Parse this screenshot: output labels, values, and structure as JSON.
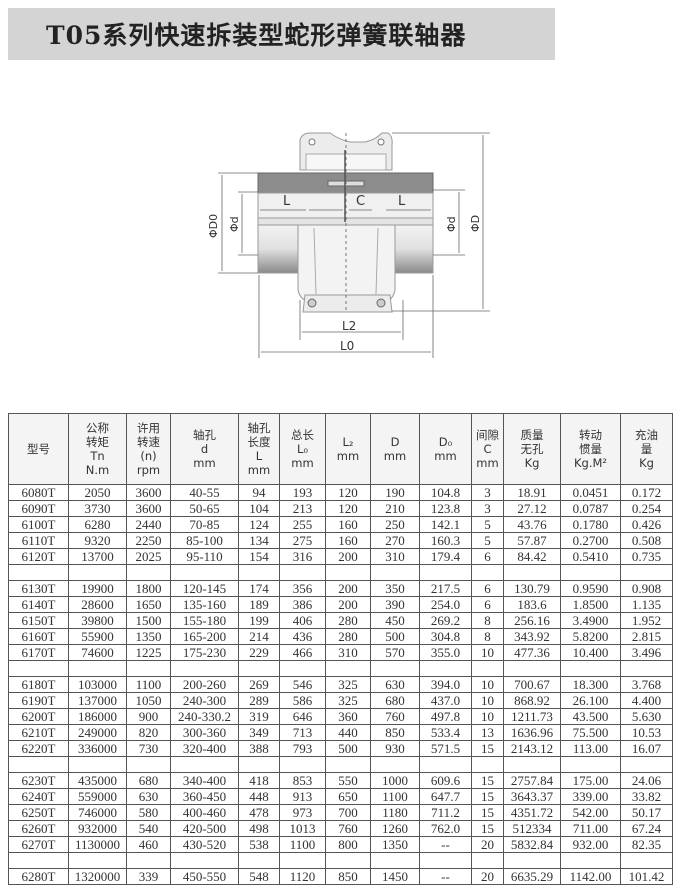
{
  "title": "T05系列快速拆装型蛇形弹簧联轴器",
  "drawing": {
    "labels": {
      "L": "L",
      "C": "C",
      "L2": "L2",
      "L0": "L0",
      "D0": "ΦD0",
      "d": "Φd",
      "D": "ΦD"
    }
  },
  "table": {
    "headers": [
      [
        "型号"
      ],
      [
        "公称",
        "转矩",
        "Tn",
        "N.m"
      ],
      [
        "许用",
        "转速",
        "(n)",
        "rpm"
      ],
      [
        "轴孔",
        "d",
        "mm"
      ],
      [
        "轴孔",
        "长度",
        "L",
        "mm"
      ],
      [
        "总长",
        "L₀",
        "mm"
      ],
      [
        "L₂",
        "mm"
      ],
      [
        "D",
        "mm"
      ],
      [
        "D₀",
        "mm"
      ],
      [
        "间隙",
        "C",
        "mm"
      ],
      [
        "质量",
        "无孔",
        "Kg"
      ],
      [
        "转动",
        "惯量",
        "Kg.M²"
      ],
      [
        "充油",
        "量",
        "Kg"
      ]
    ],
    "groups": [
      [
        [
          "6080T",
          "2050",
          "3600",
          "40-55",
          "94",
          "193",
          "120",
          "190",
          "104.8",
          "3",
          "18.91",
          "0.0451",
          "0.172"
        ],
        [
          "6090T",
          "3730",
          "3600",
          "50-65",
          "104",
          "213",
          "120",
          "210",
          "123.8",
          "3",
          "27.12",
          "0.0787",
          "0.254"
        ],
        [
          "6100T",
          "6280",
          "2440",
          "70-85",
          "124",
          "255",
          "160",
          "250",
          "142.1",
          "5",
          "43.76",
          "0.1780",
          "0.426"
        ],
        [
          "6110T",
          "9320",
          "2250",
          "85-100",
          "134",
          "275",
          "160",
          "270",
          "160.3",
          "5",
          "57.87",
          "0.2700",
          "0.508"
        ],
        [
          "6120T",
          "13700",
          "2025",
          "95-110",
          "154",
          "316",
          "200",
          "310",
          "179.4",
          "6",
          "84.42",
          "0.5410",
          "0.735"
        ]
      ],
      [
        [
          "6130T",
          "19900",
          "1800",
          "120-145",
          "174",
          "356",
          "200",
          "350",
          "217.5",
          "6",
          "130.79",
          "0.9590",
          "0.908"
        ],
        [
          "6140T",
          "28600",
          "1650",
          "135-160",
          "189",
          "386",
          "200",
          "390",
          "254.0",
          "6",
          "183.6",
          "1.8500",
          "1.135"
        ],
        [
          "6150T",
          "39800",
          "1500",
          "155-180",
          "199",
          "406",
          "280",
          "450",
          "269.2",
          "8",
          "256.16",
          "3.4900",
          "1.952"
        ],
        [
          "6160T",
          "55900",
          "1350",
          "165-200",
          "214",
          "436",
          "280",
          "500",
          "304.8",
          "8",
          "343.92",
          "5.8200",
          "2.815"
        ],
        [
          "6170T",
          "74600",
          "1225",
          "175-230",
          "229",
          "466",
          "310",
          "570",
          "355.0",
          "10",
          "477.36",
          "10.400",
          "3.496"
        ]
      ],
      [
        [
          "6180T",
          "103000",
          "1100",
          "200-260",
          "269",
          "546",
          "325",
          "630",
          "394.0",
          "10",
          "700.67",
          "18.300",
          "3.768"
        ],
        [
          "6190T",
          "137000",
          "1050",
          "240-300",
          "289",
          "586",
          "325",
          "680",
          "437.0",
          "10",
          "868.92",
          "26.100",
          "4.400"
        ],
        [
          "6200T",
          "186000",
          "900",
          "240-330.2",
          "319",
          "646",
          "360",
          "760",
          "497.8",
          "10",
          "1211.73",
          "43.500",
          "5.630"
        ],
        [
          "6210T",
          "249000",
          "820",
          "300-360",
          "349",
          "713",
          "440",
          "850",
          "533.4",
          "13",
          "1636.96",
          "75.500",
          "10.53"
        ],
        [
          "6220T",
          "336000",
          "730",
          "320-400",
          "388",
          "793",
          "500",
          "930",
          "571.5",
          "15",
          "2143.12",
          "113.00",
          "16.07"
        ]
      ],
      [
        [
          "6230T",
          "435000",
          "680",
          "340-400",
          "418",
          "853",
          "550",
          "1000",
          "609.6",
          "15",
          "2757.84",
          "175.00",
          "24.06"
        ],
        [
          "6240T",
          "559000",
          "630",
          "360-450",
          "448",
          "913",
          "650",
          "1100",
          "647.7",
          "15",
          "3643.37",
          "339.00",
          "33.82"
        ],
        [
          "6250T",
          "746000",
          "580",
          "400-460",
          "478",
          "973",
          "700",
          "1180",
          "711.2",
          "15",
          "4351.72",
          "542.00",
          "50.17"
        ],
        [
          "6260T",
          "932000",
          "540",
          "420-500",
          "498",
          "1013",
          "760",
          "1260",
          "762.0",
          "15",
          "512334",
          "711.00",
          "67.24"
        ],
        [
          "6270T",
          "1130000",
          "460",
          "430-520",
          "538",
          "1100",
          "800",
          "1350",
          "--",
          "20",
          "5832.84",
          "932.00",
          "82.35"
        ]
      ],
      [
        [
          "6280T",
          "1320000",
          "339",
          "450-550",
          "548",
          "1120",
          "850",
          "1450",
          "--",
          "20",
          "6635.29",
          "1142.00",
          "101.42"
        ]
      ]
    ]
  }
}
